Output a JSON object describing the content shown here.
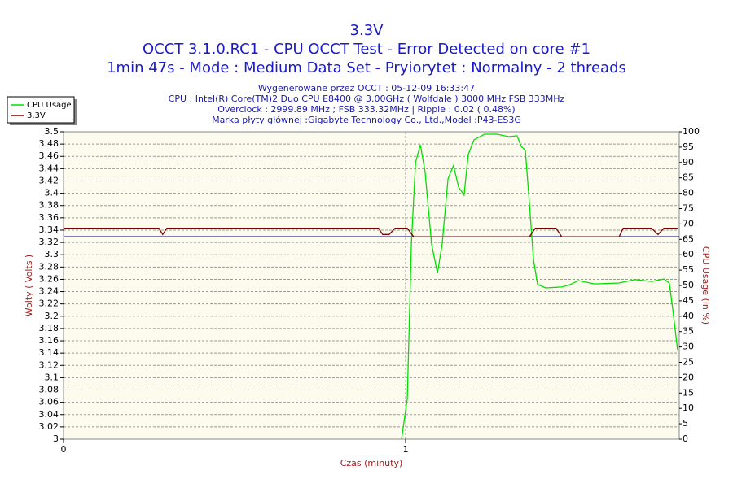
{
  "chart_data": {
    "type": "line",
    "title": "3.3V",
    "subtitle_lines": [
      "OCCT 3.1.0.RC1 - CPU OCCT Test - Error Detected on core #1",
      "1min 47s - Mode : Medium Data Set - Pryiorytet : Normalny - 2 threads"
    ],
    "info_lines": [
      "Wygenerowane przez OCCT : 05-12-09 16:33:47",
      "CPU : Intel(R) Core(TM)2 Duo CPU E8400 @ 3.00GHz ( Wolfdale ) 3000 MHz FSB 333MHz",
      "Overclock : 2999.89 MHz ; FSB 333.32MHz | Ripple : 0.02 ( 0.48%)",
      "Marka płyty głównej :Gigabyte Technology Co., Ltd.,Model :P43-ES3G"
    ],
    "xlabel": "Czas (minuty)",
    "ylabel": "Wolty ( Volts )",
    "y2label": "CPU Usage (in %)",
    "xlim": [
      0,
      1.8
    ],
    "xticks": [
      0,
      1
    ],
    "ylim": [
      3,
      3.5
    ],
    "yticks": [
      3,
      3.02,
      3.04,
      3.06,
      3.08,
      3.1,
      3.12,
      3.14,
      3.16,
      3.18,
      3.2,
      3.22,
      3.24,
      3.26,
      3.28,
      3.3,
      3.32,
      3.34,
      3.36,
      3.38,
      3.4,
      3.42,
      3.44,
      3.46,
      3.48,
      3.5
    ],
    "y2lim": [
      0,
      100
    ],
    "y2ticks": [
      0,
      5,
      10,
      15,
      20,
      25,
      30,
      35,
      40,
      45,
      50,
      55,
      60,
      65,
      70,
      75,
      80,
      85,
      90,
      95,
      100
    ],
    "grid": true,
    "legend": "top-left",
    "reference_line": {
      "value": 3.329,
      "color": "#000080"
    },
    "series": [
      {
        "name": "CPU Usage",
        "color": "#00e000",
        "axis": "y2",
        "x": [
          0.988,
          1.005,
          1.017,
          1.029,
          1.043,
          1.057,
          1.076,
          1.093,
          1.107,
          1.124,
          1.14,
          1.155,
          1.171,
          1.183,
          1.2,
          1.231,
          1.267,
          1.302,
          1.326,
          1.338,
          1.35,
          1.362,
          1.374,
          1.386,
          1.41,
          1.457,
          1.481,
          1.505,
          1.552,
          1.624,
          1.671,
          1.719,
          1.755,
          1.771,
          1.781,
          1.795
        ],
        "values": [
          0,
          13.2,
          63.5,
          90,
          95.8,
          87,
          63.5,
          54,
          63.5,
          84.7,
          89,
          82,
          79.4,
          92.6,
          97.4,
          99.2,
          99.2,
          98.4,
          98.7,
          95.2,
          94,
          76.7,
          58.2,
          50.3,
          49.2,
          49.5,
          50.3,
          51.6,
          50.5,
          50.8,
          51.9,
          51.3,
          52.1,
          50.8,
          42.3,
          29.1
        ]
      },
      {
        "name": "3.3V",
        "color": "#800000",
        "axis": "y",
        "x": [
          0,
          0.279,
          0.29,
          0.302,
          0.921,
          0.933,
          0.952,
          0.969,
          1.005,
          1.024,
          1.362,
          1.379,
          1.44,
          1.457,
          1.624,
          1.636,
          1.719,
          1.738,
          1.755,
          1.795
        ],
        "values": [
          3.343,
          3.343,
          3.333,
          3.343,
          3.343,
          3.333,
          3.333,
          3.343,
          3.343,
          3.329,
          3.329,
          3.343,
          3.343,
          3.329,
          3.329,
          3.343,
          3.343,
          3.333,
          3.343,
          3.343
        ]
      }
    ]
  }
}
